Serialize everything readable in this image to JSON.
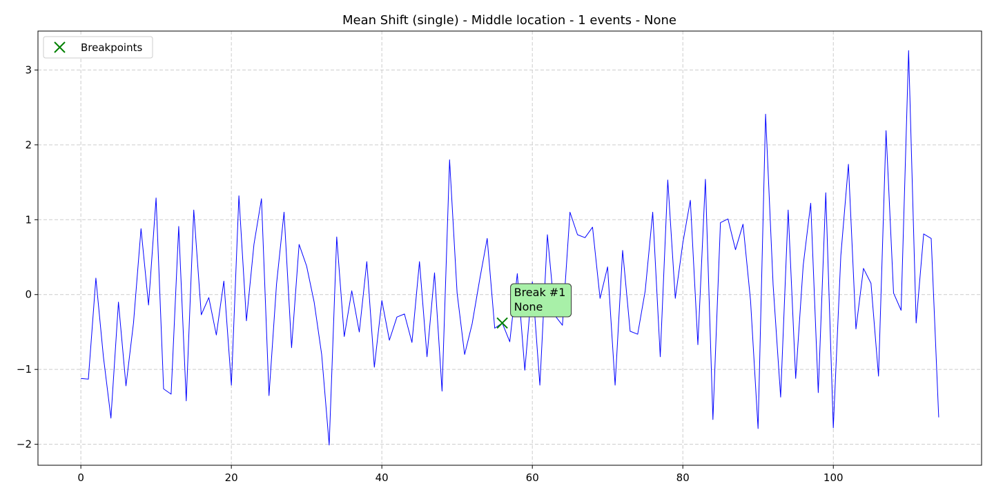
{
  "chart_data": {
    "type": "line",
    "title": "Mean Shift (single) - Middle location - 1 events - None",
    "xlabel": "",
    "ylabel": "",
    "xlim": [
      -5.7,
      119.7
    ],
    "ylim": [
      -2.28,
      3.52
    ],
    "xticks": [
      0,
      20,
      40,
      60,
      80,
      100
    ],
    "yticks": [
      -2,
      -1,
      0,
      1,
      2,
      3
    ],
    "xtick_labels": [
      "0",
      "20",
      "40",
      "60",
      "80",
      "100"
    ],
    "ytick_labels": [
      "−2",
      "−1",
      "0",
      "1",
      "2",
      "3"
    ],
    "grid": true,
    "legend_position": "top-left",
    "series": [
      {
        "color": "#0000ff",
        "x": [
          0,
          1,
          2,
          3,
          4,
          5,
          6,
          7,
          8,
          9,
          10,
          11,
          12,
          13,
          14,
          15,
          16,
          17,
          18,
          19,
          20,
          21,
          22,
          23,
          24,
          25,
          26,
          27,
          28,
          29,
          30,
          31,
          32,
          33,
          34,
          35,
          36,
          37,
          38,
          39,
          40,
          41,
          42,
          43,
          44,
          45,
          46,
          47,
          48,
          49,
          50,
          51,
          52,
          53,
          54,
          55,
          56,
          57,
          58,
          59,
          60,
          61,
          62,
          63,
          64,
          65,
          66,
          67,
          68,
          69,
          70,
          71,
          72,
          73,
          74,
          75,
          76,
          77,
          78,
          79,
          80,
          81,
          82,
          83,
          84,
          85,
          86,
          87,
          88,
          89,
          90,
          91,
          92,
          93,
          94,
          95,
          96,
          97,
          98,
          99,
          100,
          101,
          102,
          103,
          104,
          105,
          106,
          107,
          108,
          109,
          110,
          111,
          112,
          113,
          114
        ],
        "y": [
          -1.12,
          -1.13,
          0.22,
          -0.83,
          -1.65,
          -0.1,
          -1.22,
          -0.38,
          0.88,
          -0.14,
          1.29,
          -1.26,
          -1.33,
          0.91,
          -1.42,
          1.13,
          -0.27,
          -0.04,
          -0.54,
          0.18,
          -1.21,
          1.32,
          -0.35,
          0.67,
          1.28,
          -1.35,
          0.14,
          1.1,
          -0.71,
          0.67,
          0.38,
          -0.1,
          -0.8,
          -2.01,
          0.77,
          -0.56,
          0.05,
          -0.5,
          0.44,
          -0.97,
          -0.08,
          -0.61,
          -0.3,
          -0.26,
          -0.64,
          0.44,
          -0.83,
          0.29,
          -1.29,
          1.8,
          0.02,
          -0.8,
          -0.39,
          0.2,
          0.75,
          -0.45,
          -0.38,
          -0.63,
          0.28,
          -1.01,
          0.17,
          -1.21,
          0.8,
          -0.28,
          -0.41,
          1.1,
          0.8,
          0.76,
          0.9,
          -0.05,
          0.37,
          -1.21,
          0.59,
          -0.49,
          -0.53,
          0.05,
          1.1,
          -0.83,
          1.53,
          -0.05,
          0.69,
          1.26,
          -0.67,
          1.54,
          -1.67,
          0.96,
          1.01,
          0.6,
          0.94,
          -0.08,
          -1.79,
          2.41,
          0.13,
          -1.37,
          1.13,
          -1.12,
          0.39,
          1.22,
          -1.31,
          1.36,
          -1.78,
          0.52,
          1.74,
          -0.46,
          0.35,
          0.15,
          -1.09,
          2.19,
          0.02,
          -0.21,
          3.26,
          -0.38,
          0.81,
          0.75,
          -1.64
        ]
      }
    ],
    "breakpoints": {
      "legend_label": "Breakpoints",
      "color": "#008000",
      "points": [
        {
          "x": 56,
          "y": -0.38
        }
      ]
    },
    "annotations": [
      {
        "x": 56,
        "y": -0.38,
        "line1": "Break #1",
        "line2": "None",
        "bg": "#a8f0a8"
      }
    ]
  }
}
